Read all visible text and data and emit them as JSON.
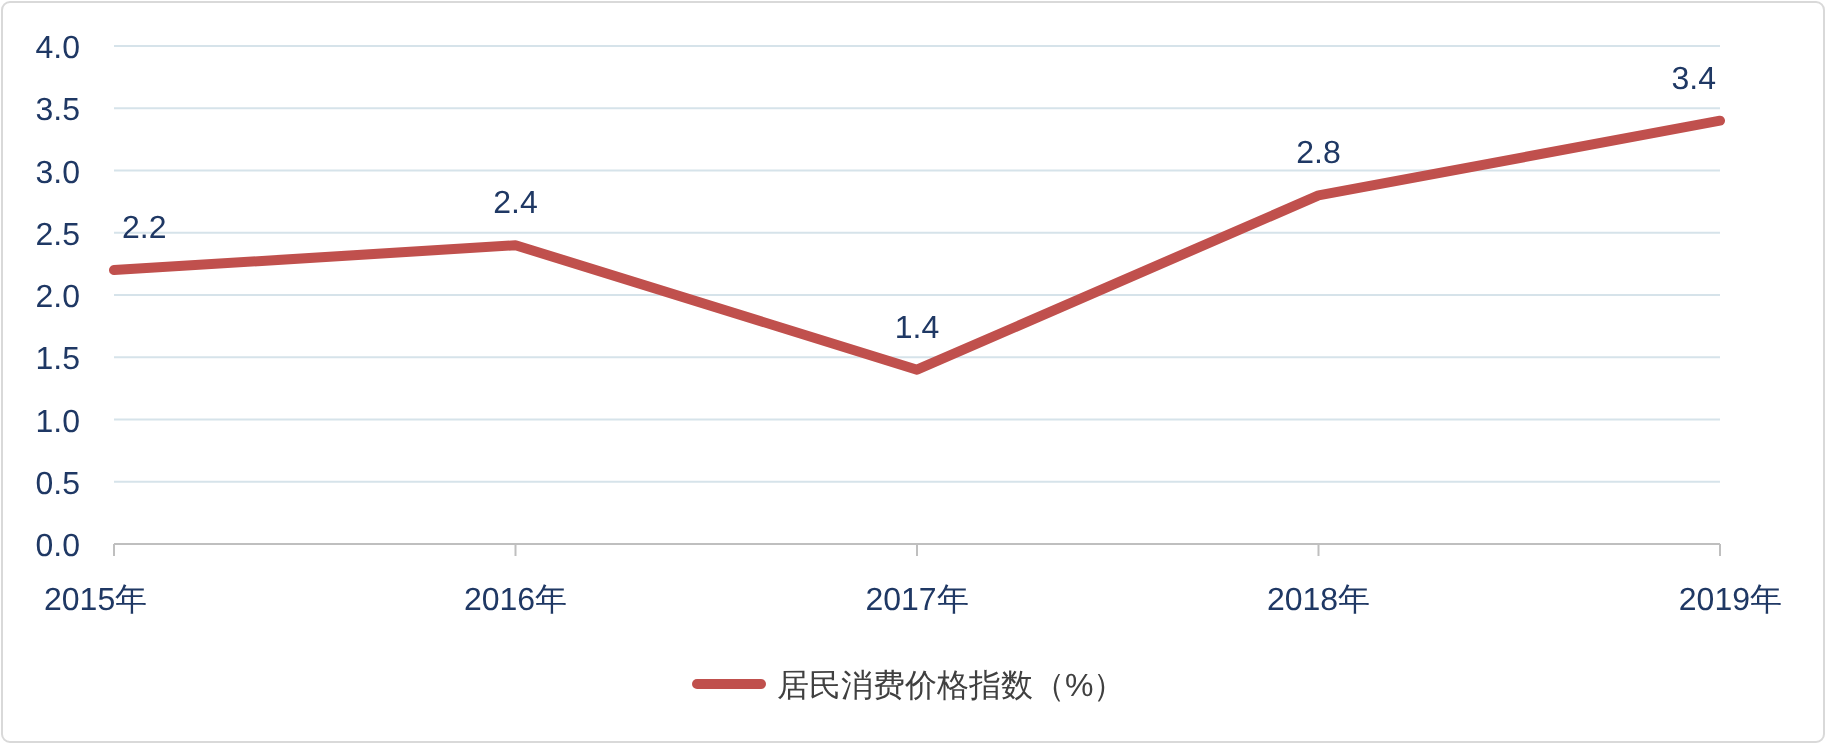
{
  "chart_data": {
    "type": "line",
    "categories": [
      "2015年",
      "2016年",
      "2017年",
      "2018年",
      "2019年"
    ],
    "series": [
      {
        "name": "居民消费价格指数（%）",
        "color": "#c0504d",
        "values": [
          2.2,
          2.4,
          1.4,
          2.8,
          3.4
        ]
      }
    ],
    "ylim": [
      0,
      4
    ],
    "yticks": [
      {
        "value": 0,
        "label": "0.0"
      },
      0.5,
      {
        "value": 1,
        "label": "1.0"
      },
      1.5,
      {
        "value": 2,
        "label": "2.0"
      },
      2.5,
      {
        "value": 3,
        "label": "3.0"
      },
      3.5,
      {
        "value": 4,
        "label": "4.0"
      }
    ],
    "grid": "y",
    "data_labels": true,
    "legend": "bottom",
    "line_style": "solid"
  }
}
